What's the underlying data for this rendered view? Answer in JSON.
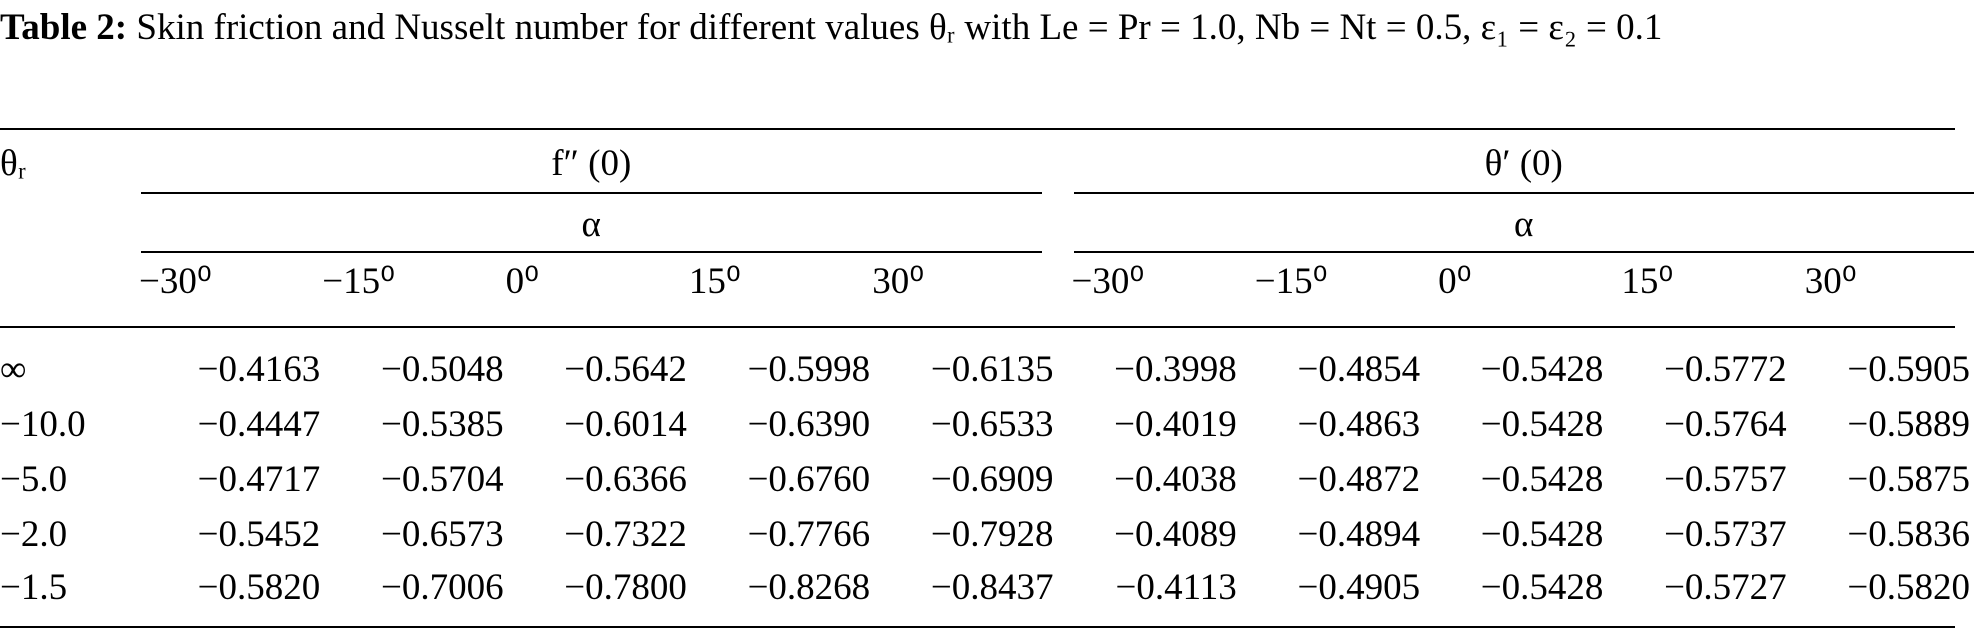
{
  "caption": {
    "label": "Table 2:",
    "text": "Skin friction and Nusselt number for different values θᵣ with Le = Pr = 1.0, Nb = Nt = 0.5, ε₁ = ε₂ = 0.1"
  },
  "table": {
    "row_header": "θᵣ",
    "groups": [
      {
        "title": "f″ (0)",
        "param": "α"
      },
      {
        "title": "θ′ (0)",
        "param": "α"
      }
    ],
    "columns": [
      "−30⁰",
      "−15⁰",
      "0⁰",
      "15⁰",
      "30⁰",
      "−30⁰",
      "−15⁰",
      "0⁰",
      "15⁰",
      "30⁰"
    ],
    "rows": [
      [
        "∞",
        "−0.4163",
        "−0.5048",
        "−0.5642",
        "−0.5998",
        "−0.6135",
        "−0.3998",
        "−0.4854",
        "−0.5428",
        "−0.5772",
        "−0.5905"
      ],
      [
        "−10.0",
        "−0.4447",
        "−0.5385",
        "−0.6014",
        "−0.6390",
        "−0.6533",
        "−0.4019",
        "−0.4863",
        "−0.5428",
        "−0.5764",
        "−0.5889"
      ],
      [
        "−5.0",
        "−0.4717",
        "−0.5704",
        "−0.6366",
        "−0.6760",
        "−0.6909",
        "−0.4038",
        "−0.4872",
        "−0.5428",
        "−0.5757",
        "−0.5875"
      ],
      [
        "−2.0",
        "−0.5452",
        "−0.6573",
        "−0.7322",
        "−0.7766",
        "−0.7928",
        "−0.4089",
        "−0.4894",
        "−0.5428",
        "−0.5737",
        "−0.5836"
      ],
      [
        "−1.5",
        "−0.5820",
        "−0.7006",
        "−0.7800",
        "−0.8268",
        "−0.8437",
        "−0.4113",
        "−0.4905",
        "−0.5428",
        "−0.5727",
        "−0.5820"
      ]
    ]
  }
}
